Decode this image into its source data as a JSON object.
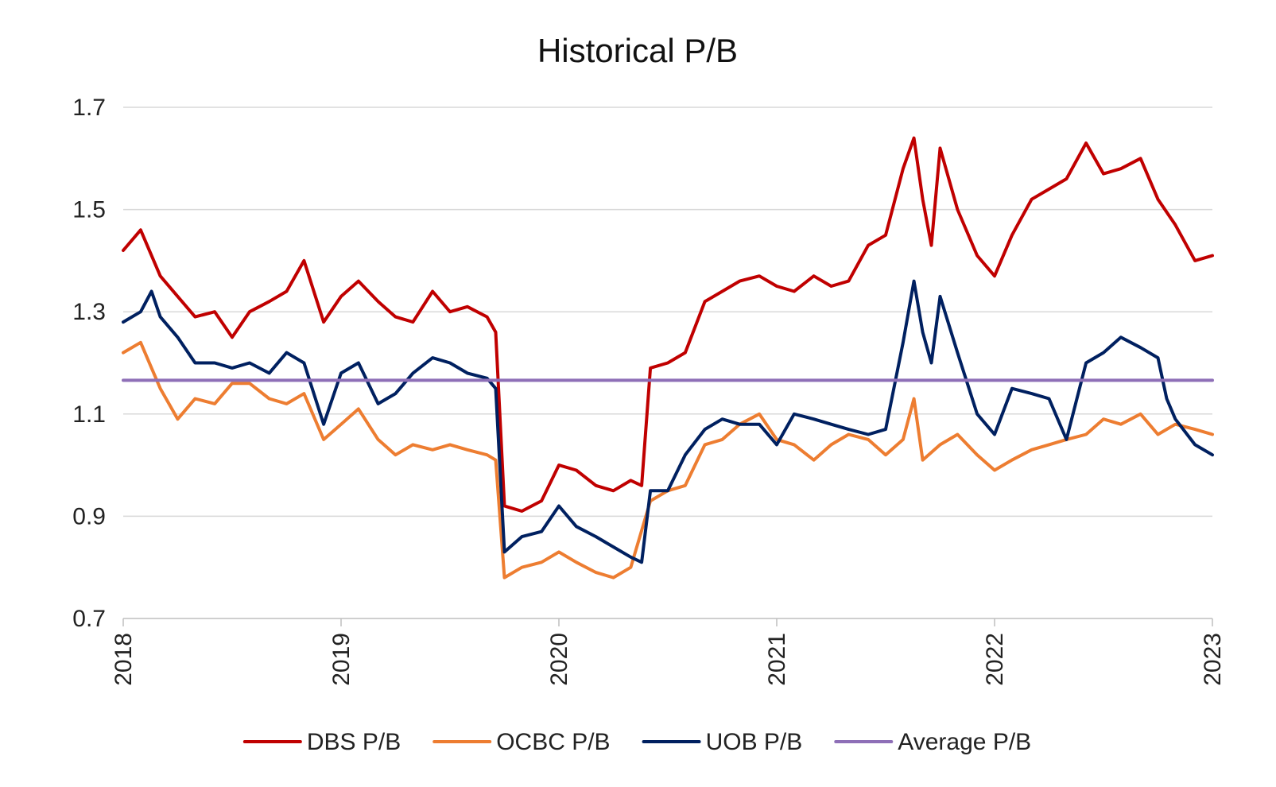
{
  "chart_data": {
    "type": "line",
    "title": "Historical P/B",
    "xlabel": "",
    "ylabel": "",
    "xlim": [
      2018,
      2023
    ],
    "ylim": [
      0.7,
      1.7
    ],
    "x_ticks": [
      "2018",
      "2019",
      "2020",
      "2021",
      "2022",
      "2023"
    ],
    "y_ticks": [
      "0.7",
      "0.9",
      "1.1",
      "1.3",
      "1.5",
      "1.7"
    ],
    "grid": true,
    "legend_position": "bottom",
    "series": [
      {
        "name": "DBS P/B",
        "color": "#c00000",
        "x": [
          2018.0,
          2018.08,
          2018.17,
          2018.25,
          2018.33,
          2018.42,
          2018.5,
          2018.58,
          2018.67,
          2018.75,
          2018.83,
          2018.92,
          2019.0,
          2019.08,
          2019.17,
          2019.25,
          2019.33,
          2019.42,
          2019.5,
          2019.58,
          2019.67,
          2019.71,
          2019.75,
          2019.83,
          2019.92,
          2020.0,
          2020.08,
          2020.17,
          2020.25,
          2020.33,
          2020.38,
          2020.42,
          2020.5,
          2020.58,
          2020.67,
          2020.75,
          2020.83,
          2020.92,
          2021.0,
          2021.08,
          2021.17,
          2021.25,
          2021.33,
          2021.42,
          2021.5,
          2021.58,
          2021.63,
          2021.67,
          2021.71,
          2021.75,
          2021.83,
          2021.92,
          2022.0,
          2022.08,
          2022.17,
          2022.25,
          2022.33,
          2022.42,
          2022.5,
          2022.58,
          2022.67,
          2022.75,
          2022.83,
          2022.92,
          2023.0
        ],
        "values": [
          1.42,
          1.46,
          1.37,
          1.33,
          1.29,
          1.3,
          1.25,
          1.3,
          1.32,
          1.34,
          1.4,
          1.28,
          1.33,
          1.36,
          1.32,
          1.29,
          1.28,
          1.34,
          1.3,
          1.31,
          1.29,
          1.26,
          0.92,
          0.91,
          0.93,
          1.0,
          0.99,
          0.96,
          0.95,
          0.97,
          0.96,
          1.19,
          1.2,
          1.22,
          1.32,
          1.34,
          1.36,
          1.37,
          1.35,
          1.34,
          1.37,
          1.35,
          1.36,
          1.43,
          1.45,
          1.58,
          1.64,
          1.52,
          1.43,
          1.62,
          1.5,
          1.41,
          1.37,
          1.45,
          1.52,
          1.54,
          1.56,
          1.63,
          1.57,
          1.58,
          1.6,
          1.52,
          1.47,
          1.4,
          1.41
        ]
      },
      {
        "name": "OCBC P/B",
        "color": "#ed7d31",
        "x": [
          2018.0,
          2018.08,
          2018.17,
          2018.25,
          2018.33,
          2018.42,
          2018.5,
          2018.58,
          2018.67,
          2018.75,
          2018.83,
          2018.92,
          2019.0,
          2019.08,
          2019.17,
          2019.25,
          2019.33,
          2019.42,
          2019.5,
          2019.58,
          2019.67,
          2019.71,
          2019.75,
          2019.83,
          2019.92,
          2020.0,
          2020.08,
          2020.17,
          2020.25,
          2020.33,
          2020.42,
          2020.5,
          2020.58,
          2020.67,
          2020.75,
          2020.83,
          2020.92,
          2021.0,
          2021.08,
          2021.17,
          2021.25,
          2021.33,
          2021.42,
          2021.5,
          2021.58,
          2021.63,
          2021.67,
          2021.75,
          2021.83,
          2021.92,
          2022.0,
          2022.08,
          2022.17,
          2022.25,
          2022.33,
          2022.42,
          2022.5,
          2022.58,
          2022.67,
          2022.75,
          2022.83,
          2022.92,
          2023.0
        ],
        "values": [
          1.22,
          1.24,
          1.15,
          1.09,
          1.13,
          1.12,
          1.16,
          1.16,
          1.13,
          1.12,
          1.14,
          1.05,
          1.08,
          1.11,
          1.05,
          1.02,
          1.04,
          1.03,
          1.04,
          1.03,
          1.02,
          1.01,
          0.78,
          0.8,
          0.81,
          0.83,
          0.81,
          0.79,
          0.78,
          0.8,
          0.93,
          0.95,
          0.96,
          1.04,
          1.05,
          1.08,
          1.1,
          1.05,
          1.04,
          1.01,
          1.04,
          1.06,
          1.05,
          1.02,
          1.05,
          1.13,
          1.01,
          1.04,
          1.06,
          1.02,
          0.99,
          1.01,
          1.03,
          1.04,
          1.05,
          1.06,
          1.09,
          1.08,
          1.1,
          1.06,
          1.08,
          1.07,
          1.06
        ]
      },
      {
        "name": "UOB P/B",
        "color": "#002060",
        "x": [
          2018.0,
          2018.08,
          2018.13,
          2018.17,
          2018.25,
          2018.33,
          2018.42,
          2018.5,
          2018.58,
          2018.67,
          2018.75,
          2018.83,
          2018.92,
          2019.0,
          2019.08,
          2019.17,
          2019.25,
          2019.33,
          2019.42,
          2019.5,
          2019.58,
          2019.67,
          2019.71,
          2019.75,
          2019.83,
          2019.92,
          2020.0,
          2020.08,
          2020.17,
          2020.25,
          2020.33,
          2020.38,
          2020.42,
          2020.5,
          2020.58,
          2020.67,
          2020.75,
          2020.83,
          2020.92,
          2021.0,
          2021.08,
          2021.17,
          2021.25,
          2021.33,
          2021.42,
          2021.5,
          2021.58,
          2021.63,
          2021.67,
          2021.71,
          2021.75,
          2021.83,
          2021.92,
          2022.0,
          2022.08,
          2022.17,
          2022.25,
          2022.33,
          2022.42,
          2022.5,
          2022.58,
          2022.67,
          2022.75,
          2022.79,
          2022.83,
          2022.92,
          2023.0
        ],
        "values": [
          1.28,
          1.3,
          1.34,
          1.29,
          1.25,
          1.2,
          1.2,
          1.19,
          1.2,
          1.18,
          1.22,
          1.2,
          1.08,
          1.18,
          1.2,
          1.12,
          1.14,
          1.18,
          1.21,
          1.2,
          1.18,
          1.17,
          1.15,
          0.83,
          0.86,
          0.87,
          0.92,
          0.88,
          0.86,
          0.84,
          0.82,
          0.81,
          0.95,
          0.95,
          1.02,
          1.07,
          1.09,
          1.08,
          1.08,
          1.04,
          1.1,
          1.09,
          1.08,
          1.07,
          1.06,
          1.07,
          1.24,
          1.36,
          1.26,
          1.2,
          1.33,
          1.22,
          1.1,
          1.06,
          1.15,
          1.14,
          1.13,
          1.05,
          1.2,
          1.22,
          1.25,
          1.23,
          1.21,
          1.13,
          1.09,
          1.04,
          1.02
        ]
      },
      {
        "name": "Average P/B",
        "color": "#8e6fb7",
        "x": [
          2018.0,
          2023.0
        ],
        "values": [
          1.166,
          1.166
        ]
      }
    ]
  }
}
